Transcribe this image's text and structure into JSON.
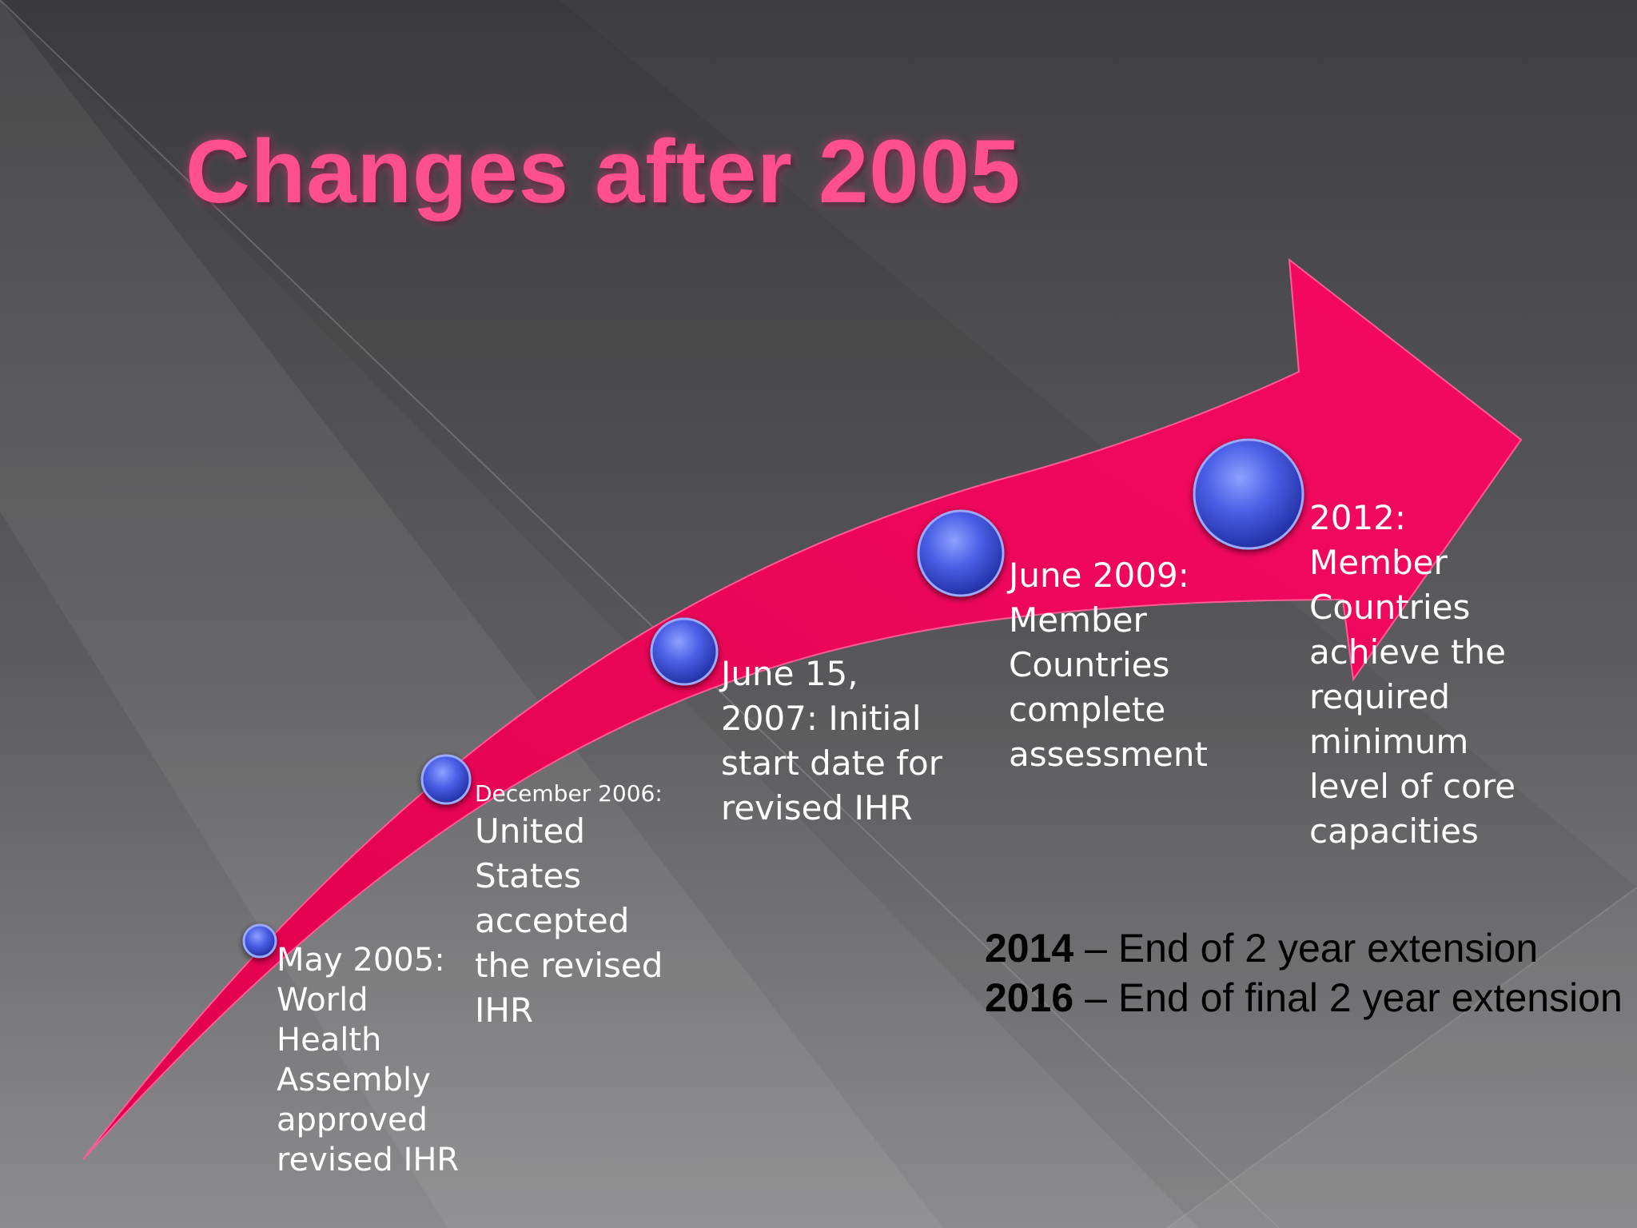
{
  "slide": {
    "title": "Changes after 2005",
    "colors": {
      "title": "#ff4f8d",
      "arrow": "#f0075a",
      "bullet": "#3a4fd6",
      "background_light": "#8a8a8c",
      "background_dark": "#3f3f41"
    }
  },
  "timeline": {
    "events": [
      {
        "date": "May 2005:",
        "text": "World\nHealth\nAssembly\napproved\nrevised IHR"
      },
      {
        "date": "December 2006:",
        "text": "United\nStates\naccepted\nthe revised\nIHR"
      },
      {
        "date": "",
        "text": "June 15,\n2007: Initial\nstart date for\nrevised IHR"
      },
      {
        "date": "",
        "text": "June 2009:\nMember\nCountries\ncomplete\nassessment"
      },
      {
        "date": "",
        "text": "2012:\nMember\nCountries\nachieve the\nrequired\nminimum\nlevel of core\ncapacities"
      }
    ]
  },
  "extensions": [
    {
      "year": "2014",
      "text": " – End of 2 year extension"
    },
    {
      "year": "2016",
      "text": " – End of final 2 year extension"
    }
  ]
}
